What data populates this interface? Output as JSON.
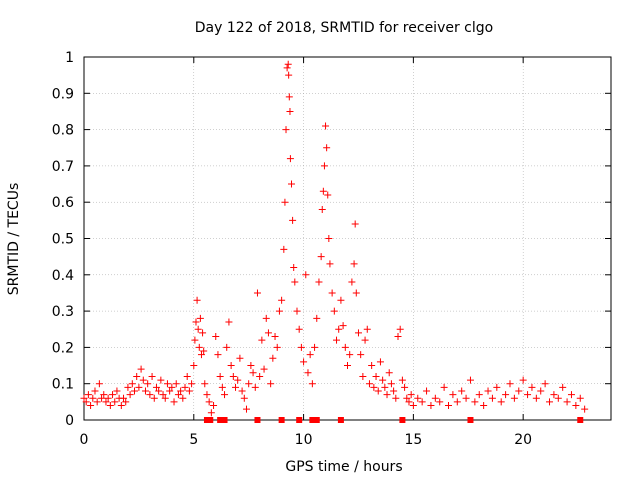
{
  "chart_data": {
    "type": "scatter",
    "title": "Day 122 of 2018, SRMTID for receiver clgo",
    "xlabel": "GPS time / hours",
    "ylabel": "SRMTID / TECUs",
    "xlim": [
      0,
      24
    ],
    "ylim": [
      0,
      1
    ],
    "xticks": [
      0,
      5,
      10,
      15,
      20
    ],
    "xtick_labels": [
      "0",
      "5",
      "10",
      "15",
      "20"
    ],
    "yticks": [
      0,
      0.1,
      0.2,
      0.3,
      0.4,
      0.5,
      0.6,
      0.7,
      0.8,
      0.9,
      1
    ],
    "ytick_labels": [
      "0",
      "0.1",
      "0.2",
      "0.3",
      "0.4",
      "0.5",
      "0.6",
      "0.7",
      "0.8",
      "0.9",
      "1"
    ],
    "grid": true,
    "marker_color": "#ff0000",
    "marker": "plus",
    "series": [
      {
        "name": "SRMTID",
        "points": [
          [
            0.0,
            0.06
          ],
          [
            0.1,
            0.05
          ],
          [
            0.2,
            0.07
          ],
          [
            0.3,
            0.04
          ],
          [
            0.4,
            0.06
          ],
          [
            0.5,
            0.08
          ],
          [
            0.6,
            0.05
          ],
          [
            0.7,
            0.1
          ],
          [
            0.8,
            0.06
          ],
          [
            0.9,
            0.07
          ],
          [
            1.0,
            0.05
          ],
          [
            1.1,
            0.06
          ],
          [
            1.2,
            0.04
          ],
          [
            1.3,
            0.07
          ],
          [
            1.4,
            0.05
          ],
          [
            1.5,
            0.08
          ],
          [
            1.6,
            0.06
          ],
          [
            1.7,
            0.04
          ],
          [
            1.8,
            0.06
          ],
          [
            1.9,
            0.05
          ],
          [
            2.0,
            0.09
          ],
          [
            2.1,
            0.07
          ],
          [
            2.2,
            0.1
          ],
          [
            2.3,
            0.08
          ],
          [
            2.4,
            0.12
          ],
          [
            2.5,
            0.09
          ],
          [
            2.6,
            0.14
          ],
          [
            2.7,
            0.11
          ],
          [
            2.8,
            0.08
          ],
          [
            2.9,
            0.1
          ],
          [
            3.0,
            0.07
          ],
          [
            3.1,
            0.12
          ],
          [
            3.2,
            0.06
          ],
          [
            3.3,
            0.09
          ],
          [
            3.4,
            0.08
          ],
          [
            3.5,
            0.11
          ],
          [
            3.6,
            0.07
          ],
          [
            3.7,
            0.06
          ],
          [
            3.8,
            0.1
          ],
          [
            3.9,
            0.08
          ],
          [
            4.0,
            0.09
          ],
          [
            4.1,
            0.05
          ],
          [
            4.2,
            0.1
          ],
          [
            4.3,
            0.07
          ],
          [
            4.4,
            0.08
          ],
          [
            4.5,
            0.06
          ],
          [
            4.6,
            0.09
          ],
          [
            4.7,
            0.12
          ],
          [
            4.8,
            0.08
          ],
          [
            4.9,
            0.1
          ],
          [
            5.0,
            0.15
          ],
          [
            5.05,
            0.22
          ],
          [
            5.1,
            0.27
          ],
          [
            5.15,
            0.33
          ],
          [
            5.2,
            0.25
          ],
          [
            5.25,
            0.2
          ],
          [
            5.3,
            0.28
          ],
          [
            5.35,
            0.18
          ],
          [
            5.4,
            0.24
          ],
          [
            5.45,
            0.19
          ],
          [
            5.5,
            0.1
          ],
          [
            5.6,
            0.07
          ],
          [
            5.7,
            0.05
          ],
          [
            5.8,
            0.02
          ],
          [
            5.9,
            0.04
          ],
          [
            6.0,
            0.23
          ],
          [
            6.1,
            0.18
          ],
          [
            6.2,
            0.12
          ],
          [
            6.3,
            0.09
          ],
          [
            6.4,
            0.07
          ],
          [
            6.5,
            0.2
          ],
          [
            6.6,
            0.27
          ],
          [
            6.7,
            0.15
          ],
          [
            6.8,
            0.12
          ],
          [
            6.9,
            0.09
          ],
          [
            7.0,
            0.11
          ],
          [
            7.1,
            0.17
          ],
          [
            7.2,
            0.08
          ],
          [
            7.3,
            0.06
          ],
          [
            7.4,
            0.03
          ],
          [
            7.5,
            0.1
          ],
          [
            7.6,
            0.15
          ],
          [
            7.7,
            0.13
          ],
          [
            7.8,
            0.09
          ],
          [
            7.9,
            0.35
          ],
          [
            8.0,
            0.12
          ],
          [
            8.1,
            0.22
          ],
          [
            8.2,
            0.14
          ],
          [
            8.3,
            0.28
          ],
          [
            8.4,
            0.24
          ],
          [
            8.5,
            0.1
          ],
          [
            8.6,
            0.17
          ],
          [
            8.7,
            0.23
          ],
          [
            8.8,
            0.2
          ],
          [
            8.9,
            0.3
          ],
          [
            9.0,
            0.33
          ],
          [
            9.1,
            0.47
          ],
          [
            9.15,
            0.6
          ],
          [
            9.2,
            0.8
          ],
          [
            9.25,
            0.97
          ],
          [
            9.3,
            0.98
          ],
          [
            9.32,
            0.95
          ],
          [
            9.35,
            0.89
          ],
          [
            9.38,
            0.85
          ],
          [
            9.4,
            0.72
          ],
          [
            9.45,
            0.65
          ],
          [
            9.5,
            0.55
          ],
          [
            9.55,
            0.42
          ],
          [
            9.6,
            0.38
          ],
          [
            9.7,
            0.3
          ],
          [
            9.8,
            0.25
          ],
          [
            9.9,
            0.2
          ],
          [
            10.0,
            0.16
          ],
          [
            10.1,
            0.4
          ],
          [
            10.2,
            0.13
          ],
          [
            10.3,
            0.18
          ],
          [
            10.4,
            0.1
          ],
          [
            10.5,
            0.2
          ],
          [
            10.6,
            0.28
          ],
          [
            10.7,
            0.38
          ],
          [
            10.8,
            0.45
          ],
          [
            10.85,
            0.58
          ],
          [
            10.9,
            0.63
          ],
          [
            10.95,
            0.7
          ],
          [
            11.0,
            0.81
          ],
          [
            11.05,
            0.75
          ],
          [
            11.1,
            0.62
          ],
          [
            11.15,
            0.5
          ],
          [
            11.2,
            0.43
          ],
          [
            11.3,
            0.35
          ],
          [
            11.4,
            0.3
          ],
          [
            11.5,
            0.22
          ],
          [
            11.6,
            0.25
          ],
          [
            11.7,
            0.33
          ],
          [
            11.8,
            0.26
          ],
          [
            11.9,
            0.2
          ],
          [
            12.0,
            0.15
          ],
          [
            12.1,
            0.18
          ],
          [
            12.2,
            0.38
          ],
          [
            12.3,
            0.43
          ],
          [
            12.35,
            0.54
          ],
          [
            12.4,
            0.35
          ],
          [
            12.5,
            0.24
          ],
          [
            12.6,
            0.18
          ],
          [
            12.7,
            0.12
          ],
          [
            12.8,
            0.22
          ],
          [
            12.9,
            0.25
          ],
          [
            13.0,
            0.1
          ],
          [
            13.1,
            0.15
          ],
          [
            13.2,
            0.09
          ],
          [
            13.3,
            0.12
          ],
          [
            13.4,
            0.08
          ],
          [
            13.5,
            0.16
          ],
          [
            13.6,
            0.11
          ],
          [
            13.7,
            0.09
          ],
          [
            13.8,
            0.07
          ],
          [
            13.9,
            0.13
          ],
          [
            14.0,
            0.1
          ],
          [
            14.1,
            0.08
          ],
          [
            14.2,
            0.06
          ],
          [
            14.3,
            0.23
          ],
          [
            14.4,
            0.25
          ],
          [
            14.5,
            0.11
          ],
          [
            14.6,
            0.09
          ],
          [
            14.7,
            0.06
          ],
          [
            14.8,
            0.05
          ],
          [
            14.9,
            0.07
          ],
          [
            15.0,
            0.04
          ],
          [
            15.2,
            0.06
          ],
          [
            15.4,
            0.05
          ],
          [
            15.6,
            0.08
          ],
          [
            15.8,
            0.04
          ],
          [
            16.0,
            0.06
          ],
          [
            16.2,
            0.05
          ],
          [
            16.4,
            0.09
          ],
          [
            16.6,
            0.04
          ],
          [
            16.8,
            0.07
          ],
          [
            17.0,
            0.05
          ],
          [
            17.2,
            0.08
          ],
          [
            17.4,
            0.06
          ],
          [
            17.6,
            0.11
          ],
          [
            17.8,
            0.05
          ],
          [
            18.0,
            0.07
          ],
          [
            18.2,
            0.04
          ],
          [
            18.4,
            0.08
          ],
          [
            18.6,
            0.06
          ],
          [
            18.8,
            0.09
          ],
          [
            19.0,
            0.05
          ],
          [
            19.2,
            0.07
          ],
          [
            19.4,
            0.1
          ],
          [
            19.6,
            0.06
          ],
          [
            19.8,
            0.08
          ],
          [
            20.0,
            0.11
          ],
          [
            20.2,
            0.07
          ],
          [
            20.4,
            0.09
          ],
          [
            20.6,
            0.06
          ],
          [
            20.8,
            0.08
          ],
          [
            21.0,
            0.1
          ],
          [
            21.2,
            0.05
          ],
          [
            21.4,
            0.07
          ],
          [
            21.6,
            0.06
          ],
          [
            21.8,
            0.09
          ],
          [
            22.0,
            0.05
          ],
          [
            22.2,
            0.07
          ],
          [
            22.4,
            0.04
          ],
          [
            22.6,
            0.06
          ],
          [
            22.8,
            0.03
          ]
        ]
      },
      {
        "name": "zero-level markers",
        "points": [
          [
            5.6,
            0
          ],
          [
            5.75,
            0
          ],
          [
            6.2,
            0
          ],
          [
            6.4,
            0
          ],
          [
            7.9,
            0
          ],
          [
            9.0,
            0
          ],
          [
            9.8,
            0
          ],
          [
            10.4,
            0
          ],
          [
            10.6,
            0
          ],
          [
            11.7,
            0
          ],
          [
            14.5,
            0
          ],
          [
            17.6,
            0
          ],
          [
            22.6,
            0
          ]
        ]
      }
    ]
  }
}
